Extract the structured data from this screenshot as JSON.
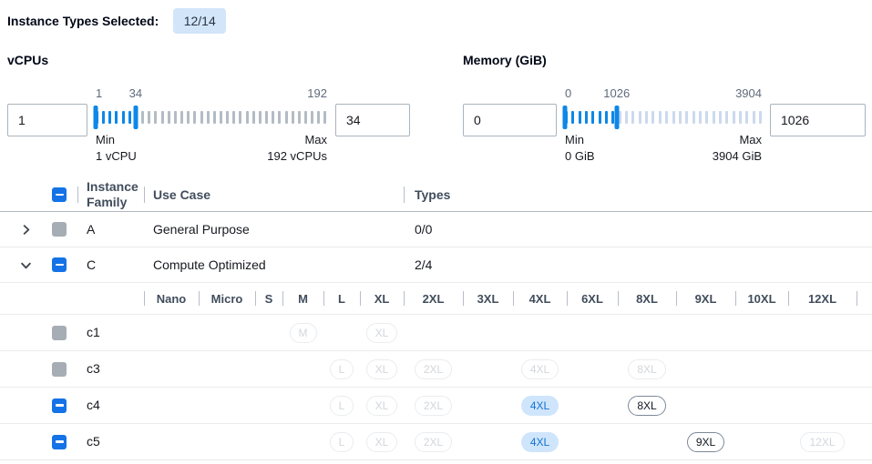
{
  "colors": {
    "accent_blue": "#1473e6",
    "slider_blue": "#0d87e8",
    "badge_bg": "#d2e5f9",
    "tick_inactive_vcpus": "#b3bcc5",
    "tick_inactive_memory": "#ccd9ed",
    "pill_selected_bg": "#cfe5fb",
    "pill_selected_text": "#1673d2",
    "pill_available_border": "#7d8998",
    "pill_disabled_border": "#eaecef",
    "pill_disabled_text": "#d2d6db",
    "disabled_grey": "#a6adb5",
    "header_text": "#414d5c",
    "scale_label": "#5f6b7a",
    "row_divider": "#e9ebed",
    "header_divider": "#b0b8c1",
    "body_text": "#16191f"
  },
  "header": {
    "label": "Instance Types Selected:",
    "count_badge": "12/14"
  },
  "filters": {
    "vcpus": {
      "title": "vCPUs",
      "min_value": "1",
      "max_value": "34",
      "scale": {
        "start": "1",
        "selected": "34",
        "end": "192"
      },
      "tick_count": 36,
      "captions": {
        "min_label": "Min",
        "min_detail": "1 vCPU",
        "max_label": "Max",
        "max_detail": "192 vCPUs"
      }
    },
    "memory": {
      "title": "Memory (GiB)",
      "min_value": "0",
      "max_value": "1026",
      "scale": {
        "start": "0",
        "selected": "1026",
        "end": "3904"
      },
      "tick_count": 30,
      "captions": {
        "min_label": "Min",
        "min_detail": "0 GiB",
        "max_label": "Max",
        "max_detail": "3904 GiB"
      }
    }
  },
  "table": {
    "select_all_state": "indeterminate",
    "columns": {
      "family": "Instance Family",
      "use_case": "Use Case",
      "types": "Types"
    },
    "size_columns": [
      "Nano",
      "Micro",
      "S",
      "M",
      "L",
      "XL",
      "2XL",
      "3XL",
      "4XL",
      "6XL",
      "8XL",
      "9XL",
      "10XL",
      "12XL"
    ],
    "family_rows": [
      {
        "family": "A",
        "use_case": "General Purpose",
        "types": "0/0",
        "expanded": false,
        "checkbox": "disabled"
      },
      {
        "family": "C",
        "use_case": "Compute Optimized",
        "types": "2/4",
        "expanded": true,
        "checkbox": "indeterminate"
      }
    ],
    "instance_rows": [
      {
        "name": "c1",
        "checkbox": "disabled",
        "sizes": {
          "M": "disabled",
          "XL": "disabled"
        }
      },
      {
        "name": "c3",
        "checkbox": "disabled",
        "sizes": {
          "L": "disabled",
          "XL": "disabled",
          "2XL": "disabled",
          "4XL": "disabled",
          "8XL": "disabled"
        }
      },
      {
        "name": "c4",
        "checkbox": "indeterminate",
        "sizes": {
          "L": "disabled",
          "XL": "disabled",
          "2XL": "disabled",
          "4XL": "selected",
          "8XL": "available"
        }
      },
      {
        "name": "c5",
        "checkbox": "indeterminate",
        "sizes": {
          "L": "disabled",
          "XL": "disabled",
          "2XL": "disabled",
          "4XL": "selected",
          "9XL": "available",
          "12XL": "disabled"
        }
      }
    ]
  }
}
